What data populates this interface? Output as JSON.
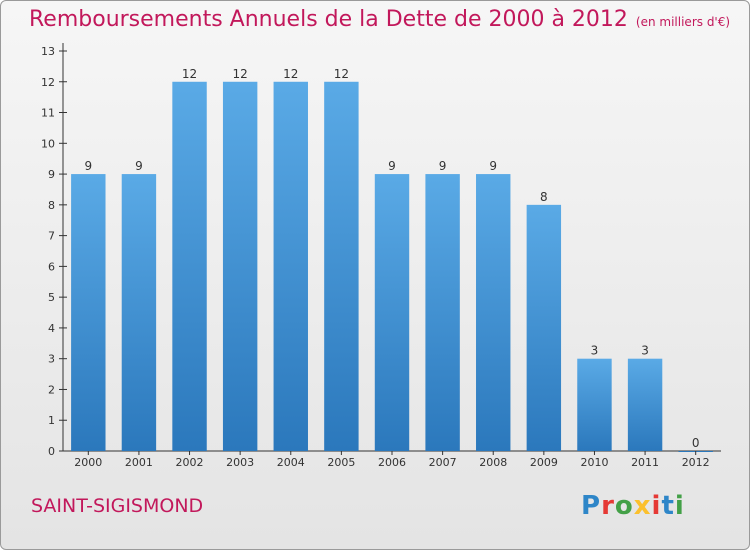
{
  "header": {
    "title": "Remboursements Annuels de la Dette de 2000 à 2012",
    "unit": "(en milliers d'€)"
  },
  "footer": {
    "commune": "SAINT-SIGISMOND",
    "logo_letters": [
      "P",
      "r",
      "o",
      "x",
      "i",
      "t",
      "i"
    ],
    "logo_colors": [
      "#2e86c8",
      "#e53935",
      "#43a047",
      "#fbc02d",
      "#e53935",
      "#2e86c8",
      "#43a047"
    ]
  },
  "colors": {
    "bar_top": "#5aaae6",
    "bar_bottom": "#2b78bc",
    "axis": "#333333",
    "grid": "#cfcfcf"
  },
  "chart_data": {
    "type": "bar",
    "title": "Remboursements Annuels de la Dette de 2000 à 2012",
    "xlabel": "",
    "ylabel": "",
    "categories": [
      "2000",
      "2001",
      "2002",
      "2003",
      "2004",
      "2005",
      "2006",
      "2007",
      "2008",
      "2009",
      "2010",
      "2011",
      "2012"
    ],
    "values": [
      9,
      9,
      12,
      12,
      12,
      12,
      9,
      9,
      9,
      8,
      3,
      3,
      0
    ],
    "ylim": [
      0,
      13
    ],
    "yticks": [
      0,
      1,
      2,
      3,
      4,
      5,
      6,
      7,
      8,
      9,
      10,
      11,
      12,
      13
    ],
    "grid": false,
    "legend": "none"
  }
}
